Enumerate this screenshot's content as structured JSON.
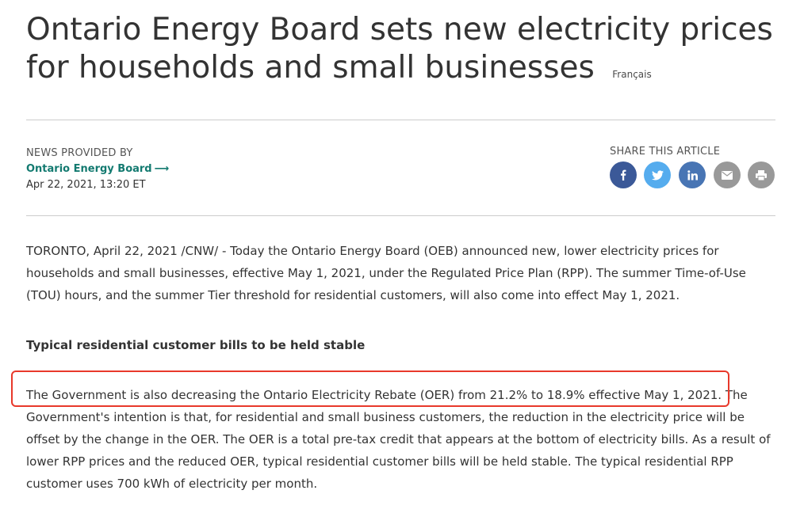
{
  "article": {
    "title": "Ontario Energy Board sets new electricity prices for households and small businesses",
    "language_link": "Français",
    "news_provided_by_label": "NEWS PROVIDED BY",
    "provider_name": "Ontario Energy Board",
    "provider_arrow": "⟶",
    "date": "Apr 22, 2021, 13:20 ET",
    "share_label": "SHARE THIS ARTICLE",
    "share_buttons": [
      {
        "name": "facebook",
        "icon": "facebook-icon",
        "color": "#3b5998"
      },
      {
        "name": "twitter",
        "icon": "twitter-icon",
        "color": "#55acee"
      },
      {
        "name": "linkedin",
        "icon": "linkedin-icon",
        "color": "#4875b4"
      },
      {
        "name": "email",
        "icon": "email-icon",
        "color": "#999999"
      },
      {
        "name": "print",
        "icon": "print-icon",
        "color": "#999999"
      }
    ],
    "paragraph_1": "TORONTO, April 22, 2021 /CNW/ - Today the Ontario Energy Board (OEB) announced new, lower electricity prices for households and small businesses, effective May 1, 2021, under the Regulated Price Plan (RPP). The summer Time-of-Use (TOU) hours, and the summer Tier threshold for residential customers, will also come into effect May 1, 2021.",
    "subheading": "Typical residential customer bills to be held stable",
    "paragraph_2": "The Government is also decreasing the Ontario Electricity Rebate (OER) from 21.2% to 18.9% effective May 1, 2021. The Government's intention is that, for residential and small business customers, the reduction in the electricity price will be offset by the change in the OER. The OER is a total pre-tax credit that appears at the bottom of electricity bills. As a result of lower RPP prices and the reduced OER, typical residential customer bills will be held stable. The typical residential RPP customer uses 700 kWh of electricity per month."
  },
  "colors": {
    "provider_link": "#137a70",
    "highlight_border": "#e8392b",
    "rule": "#cccccc"
  }
}
